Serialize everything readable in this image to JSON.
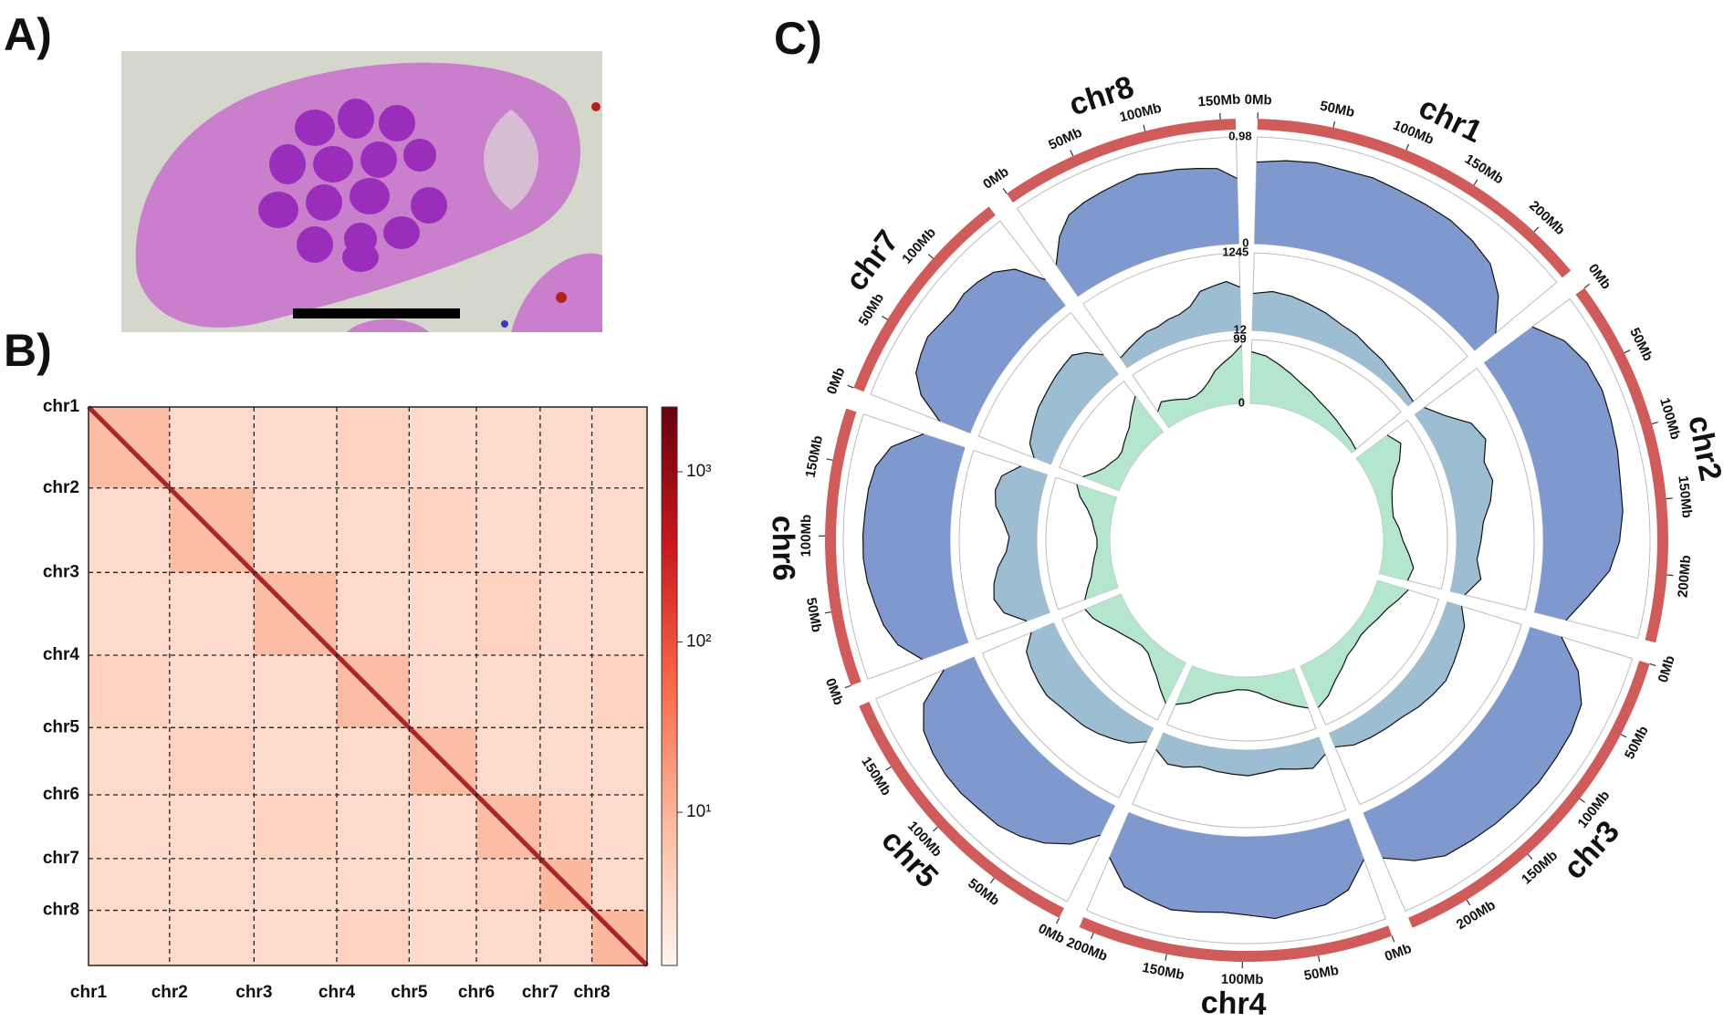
{
  "panel_labels": [
    "A)",
    "B)",
    "C)"
  ],
  "chart_data": [
    {
      "type": "heatmap",
      "categories": [
        "chr1",
        "chr2",
        "chr3",
        "chr4",
        "chr5",
        "chr6",
        "chr7",
        "chr8"
      ],
      "sizes": [
        235,
        245,
        240,
        210,
        195,
        185,
        150,
        160
      ],
      "values": [
        [
          8,
          3,
          3,
          4,
          3,
          3,
          3,
          3
        ],
        [
          3,
          8,
          3,
          3,
          4,
          3,
          3,
          3
        ],
        [
          3,
          3,
          8,
          3,
          3,
          4,
          3,
          3
        ],
        [
          4,
          3,
          3,
          8,
          3,
          3,
          3,
          4
        ],
        [
          3,
          4,
          3,
          3,
          8,
          3,
          3,
          3
        ],
        [
          3,
          3,
          4,
          3,
          3,
          8,
          4,
          3
        ],
        [
          3,
          3,
          3,
          3,
          3,
          4,
          9,
          3
        ],
        [
          3,
          3,
          3,
          4,
          3,
          3,
          3,
          9
        ]
      ],
      "diagonal": [
        900,
        900,
        900,
        900,
        900,
        900,
        900,
        900
      ],
      "colorbar": {
        "log": true,
        "lim": [
          1.26,
          2400
        ],
        "ticks": [
          {
            "value": 10,
            "label": "10¹"
          },
          {
            "value": 100,
            "label": "10²"
          },
          {
            "value": 1000,
            "label": "10³"
          }
        ]
      }
    },
    {
      "type": "circos",
      "band_color": "#cf5b5b",
      "chromosomes": [
        {
          "name": "chr1",
          "length": 235,
          "ticks": [
            {
              "value": 0,
              "label": "0Mb"
            },
            {
              "value": 50,
              "label": "50Mb"
            },
            {
              "value": 100,
              "label": "100Mb"
            },
            {
              "value": 150,
              "label": "150Mb"
            },
            {
              "value": 200,
              "label": "200Mb"
            }
          ]
        },
        {
          "name": "chr2",
          "length": 245,
          "ticks": [
            {
              "value": 0,
              "label": "0Mb"
            },
            {
              "value": 50,
              "label": "50Mb"
            },
            {
              "value": 100,
              "label": "100Mb"
            },
            {
              "value": 150,
              "label": "150Mb"
            },
            {
              "value": 200,
              "label": "200Mb"
            }
          ]
        },
        {
          "name": "chr3",
          "length": 240,
          "ticks": [
            {
              "value": 0,
              "label": "0Mb"
            },
            {
              "value": 50,
              "label": "50Mb"
            },
            {
              "value": 100,
              "label": "100Mb"
            },
            {
              "value": 150,
              "label": "150Mb"
            },
            {
              "value": 200,
              "label": "200Mb"
            }
          ]
        },
        {
          "name": "chr4",
          "length": 210,
          "ticks": [
            {
              "value": 0,
              "label": "0Mb"
            },
            {
              "value": 50,
              "label": "50Mb"
            },
            {
              "value": 100,
              "label": "100Mb"
            },
            {
              "value": 150,
              "label": "150Mb"
            },
            {
              "value": 200,
              "label": "200Mb"
            }
          ]
        },
        {
          "name": "chr5",
          "length": 195,
          "ticks": [
            {
              "value": 0,
              "label": "0Mb"
            },
            {
              "value": 50,
              "label": "50Mb"
            },
            {
              "value": 100,
              "label": "100Mb"
            },
            {
              "value": 150,
              "label": "150Mb"
            }
          ]
        },
        {
          "name": "chr6",
          "length": 185,
          "ticks": [
            {
              "value": 0,
              "label": "0Mb"
            },
            {
              "value": 50,
              "label": "50Mb"
            },
            {
              "value": 100,
              "label": "100Mb"
            },
            {
              "value": 150,
              "label": "150Mb"
            }
          ]
        },
        {
          "name": "chr7",
          "length": 150,
          "ticks": [
            {
              "value": 0,
              "label": "0Mb"
            },
            {
              "value": 50,
              "label": "50Mb"
            },
            {
              "value": 100,
              "label": "100Mb"
            }
          ]
        },
        {
          "name": "chr8",
          "length": 160,
          "ticks": [
            {
              "value": 0,
              "label": "0Mb"
            },
            {
              "value": 50,
              "label": "50Mb"
            },
            {
              "value": 100,
              "label": "100Mb"
            },
            {
              "value": 150,
              "label": "150Mb"
            }
          ]
        }
      ],
      "tracks": [
        {
          "color": "#7f99cf",
          "lim": [
            0,
            0.98
          ],
          "ticks": [
            0.98,
            0
          ],
          "values": [
            [
              0.75,
              0.78,
              0.8,
              0.79,
              0.8,
              0.78,
              0.77,
              0.76,
              0.72,
              0.66,
              0.5,
              0.25
            ],
            [
              0.55,
              0.72,
              0.8,
              0.82,
              0.8,
              0.78,
              0.75,
              0.74,
              0.7,
              0.62,
              0.45,
              0.3
            ],
            [
              0.3,
              0.55,
              0.7,
              0.74,
              0.75,
              0.76,
              0.75,
              0.74,
              0.72,
              0.7,
              0.6,
              0.45
            ],
            [
              0.4,
              0.62,
              0.7,
              0.72,
              0.76,
              0.72,
              0.7,
              0.72,
              0.74,
              0.7,
              0.65,
              0.45
            ],
            [
              0.3,
              0.5,
              0.62,
              0.7,
              0.75,
              0.76,
              0.78,
              0.78,
              0.76,
              0.72,
              0.6,
              0.3
            ],
            [
              0.45,
              0.62,
              0.7,
              0.74,
              0.78,
              0.8,
              0.8,
              0.79,
              0.78,
              0.75,
              0.65,
              0.4
            ],
            [
              0.3,
              0.55,
              0.68,
              0.72,
              0.75,
              0.72,
              0.7,
              0.72,
              0.7,
              0.66,
              0.55,
              0.3
            ],
            [
              0.35,
              0.55,
              0.68,
              0.72,
              0.74,
              0.76,
              0.78,
              0.75,
              0.74,
              0.72,
              0.7,
              0.6
            ]
          ]
        },
        {
          "color": "#9dbdd2",
          "lim": [
            12,
            1245
          ],
          "ticks": [
            1245,
            12
          ],
          "values": [
            [
              600,
              650,
              620,
              560,
              500,
              420,
              380,
              300,
              260,
              200,
              160,
              120
            ],
            [
              200,
              400,
              700,
              800,
              650,
              700,
              600,
              450,
              400,
              350,
              450,
              250
            ],
            [
              250,
              400,
              450,
              500,
              550,
              520,
              480,
              420,
              400,
              380,
              350,
              250
            ],
            [
              300,
              450,
              400,
              350,
              380,
              420,
              400,
              380,
              350,
              420,
              450,
              300
            ],
            [
              250,
              400,
              480,
              550,
              600,
              620,
              650,
              700,
              680,
              650,
              600,
              400
            ],
            [
              400,
              700,
              800,
              750,
              650,
              500,
              450,
              550,
              700,
              750,
              700,
              450
            ],
            [
              300,
              450,
              500,
              550,
              600,
              620,
              650,
              680,
              700,
              720,
              600,
              400
            ],
            [
              200,
              250,
              300,
              350,
              350,
              400,
              420,
              500,
              700,
              750,
              800,
              700
            ]
          ]
        },
        {
          "color": "#b3e6cc",
          "lim": [
            0,
            99
          ],
          "ticks": [
            99,
            0
          ],
          "values": [
            [
              80,
              75,
              65,
              55,
              45,
              38,
              30,
              25,
              20,
              15,
              12,
              8
            ],
            [
              60,
              70,
              55,
              35,
              25,
              20,
              18,
              25,
              30,
              40,
              50,
              45
            ],
            [
              50,
              40,
              30,
              25,
              20,
              18,
              22,
              25,
              35,
              45,
              60,
              70
            ],
            [
              65,
              55,
              45,
              35,
              25,
              20,
              20,
              25,
              30,
              40,
              55,
              65
            ],
            [
              70,
              55,
              40,
              30,
              20,
              18,
              22,
              28,
              35,
              45,
              55,
              60
            ],
            [
              55,
              45,
              35,
              30,
              25,
              20,
              20,
              25,
              30,
              40,
              55,
              65
            ],
            [
              60,
              45,
              35,
              30,
              25,
              25,
              30,
              35,
              40,
              50,
              60,
              70
            ],
            [
              30,
              40,
              35,
              30,
              25,
              25,
              30,
              40,
              55,
              65,
              75,
              90
            ]
          ]
        }
      ]
    }
  ]
}
